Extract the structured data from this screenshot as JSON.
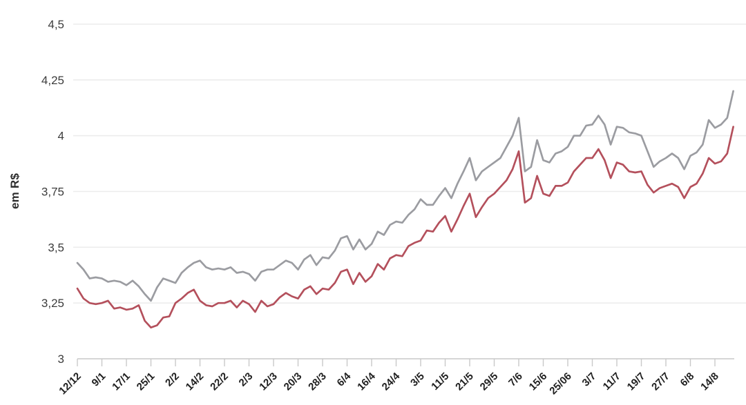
{
  "page": {
    "background": "#ffffff"
  },
  "chart_data": {
    "type": "line",
    "title": "",
    "xlabel": "",
    "ylabel": "em R$",
    "ylim": [
      3,
      4.5
    ],
    "grid": true,
    "legend_position": "none",
    "x_label_rotation": -45,
    "y_ticks": [
      "4,5",
      "4,25",
      "4",
      "3,75",
      "3,5",
      "3,25",
      "3"
    ],
    "y_tick_values": [
      4.5,
      4.25,
      4.0,
      3.75,
      3.5,
      3.25,
      3.0
    ],
    "x_labels": [
      "12/12",
      "9/1",
      "17/1",
      "25/1",
      "2/2",
      "14/2",
      "22/2",
      "2/3",
      "12/3",
      "20/3",
      "28/3",
      "6/4",
      "16/4",
      "24/4",
      "3/5",
      "11/5",
      "21/5",
      "29/5",
      "7/6",
      "15/6",
      "25/06",
      "3/7",
      "11/7",
      "19/7",
      "27/7",
      "6/8",
      "14/8"
    ],
    "points_per_label_interval": 4,
    "series": [
      {
        "name": "series-gray",
        "color": "#9b9ca1",
        "values": [
          3.43,
          3.4,
          3.36,
          3.365,
          3.36,
          3.345,
          3.35,
          3.345,
          3.33,
          3.35,
          3.325,
          3.29,
          3.26,
          3.32,
          3.36,
          3.35,
          3.34,
          3.385,
          3.41,
          3.43,
          3.44,
          3.41,
          3.4,
          3.405,
          3.4,
          3.41,
          3.385,
          3.39,
          3.38,
          3.35,
          3.39,
          3.4,
          3.4,
          3.42,
          3.44,
          3.43,
          3.4,
          3.445,
          3.465,
          3.42,
          3.455,
          3.45,
          3.485,
          3.54,
          3.55,
          3.49,
          3.535,
          3.49,
          3.515,
          3.57,
          3.555,
          3.6,
          3.615,
          3.61,
          3.645,
          3.67,
          3.715,
          3.69,
          3.69,
          3.73,
          3.765,
          3.72,
          3.785,
          3.84,
          3.9,
          3.8,
          3.84,
          3.86,
          3.88,
          3.9,
          3.95,
          4.0,
          4.08,
          3.84,
          3.86,
          3.98,
          3.89,
          3.88,
          3.92,
          3.93,
          3.95,
          4.0,
          4.0,
          4.045,
          4.05,
          4.09,
          4.05,
          3.96,
          4.04,
          4.035,
          4.015,
          4.01,
          4.0,
          3.93,
          3.86,
          3.885,
          3.9,
          3.92,
          3.9,
          3.85,
          3.91,
          3.925,
          3.96,
          4.07,
          4.035,
          4.05,
          4.08,
          4.2
        ]
      },
      {
        "name": "series-red",
        "color": "#b4505c",
        "values": [
          3.315,
          3.27,
          3.25,
          3.245,
          3.25,
          3.26,
          3.225,
          3.23,
          3.22,
          3.225,
          3.24,
          3.17,
          3.14,
          3.15,
          3.185,
          3.19,
          3.25,
          3.27,
          3.295,
          3.31,
          3.26,
          3.24,
          3.235,
          3.25,
          3.25,
          3.26,
          3.23,
          3.26,
          3.245,
          3.21,
          3.26,
          3.235,
          3.245,
          3.275,
          3.295,
          3.28,
          3.27,
          3.31,
          3.325,
          3.29,
          3.315,
          3.31,
          3.34,
          3.39,
          3.4,
          3.335,
          3.385,
          3.345,
          3.37,
          3.425,
          3.4,
          3.45,
          3.465,
          3.46,
          3.505,
          3.52,
          3.53,
          3.575,
          3.57,
          3.61,
          3.64,
          3.57,
          3.625,
          3.685,
          3.74,
          3.635,
          3.68,
          3.72,
          3.74,
          3.77,
          3.8,
          3.85,
          3.93,
          3.7,
          3.72,
          3.82,
          3.74,
          3.73,
          3.775,
          3.775,
          3.79,
          3.84,
          3.87,
          3.9,
          3.9,
          3.94,
          3.89,
          3.81,
          3.88,
          3.87,
          3.84,
          3.835,
          3.84,
          3.78,
          3.745,
          3.765,
          3.775,
          3.785,
          3.77,
          3.72,
          3.77,
          3.785,
          3.83,
          3.9,
          3.875,
          3.885,
          3.92,
          4.04
        ]
      }
    ],
    "colors": {
      "grid_line": "#ececec",
      "axis_line": "#c9c9c9",
      "y_tick_text": "#3c3c3c",
      "x_tick_text": "#1f1f1f"
    }
  }
}
